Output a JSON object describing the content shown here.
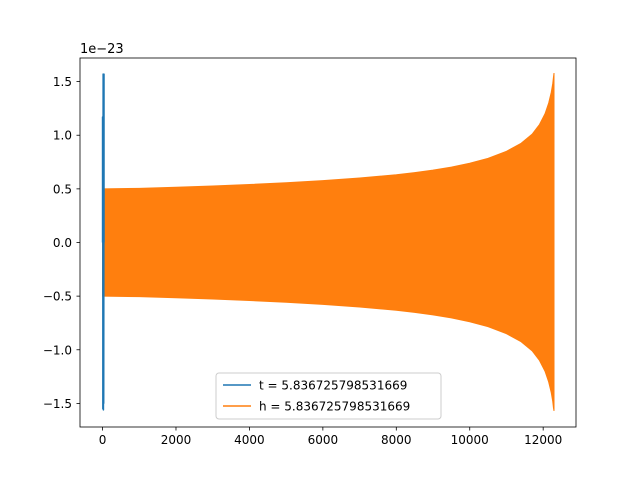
{
  "chart_data": {
    "type": "line",
    "offset_label": "1e−23",
    "scale_exponent": -23,
    "xlim": [
      -614,
      12894
    ],
    "ylim": [
      -1.72,
      1.72
    ],
    "x_ticks": [
      0,
      2000,
      4000,
      6000,
      8000,
      10000,
      12000
    ],
    "x_tick_labels": [
      "0",
      "2000",
      "4000",
      "6000",
      "8000",
      "10000",
      "12000"
    ],
    "y_ticks": [
      -1.5,
      -1.0,
      -0.5,
      0.0,
      0.5,
      1.0,
      1.5
    ],
    "y_tick_labels": [
      "−1.5",
      "−1.0",
      "−0.5",
      "0.0",
      "0.5",
      "1.0",
      "1.5"
    ],
    "legend_position": "lower-center",
    "series": [
      {
        "name": "t = 5.836725798531669",
        "color": "#1f77b4",
        "x": [
          0,
          0,
          8,
          8,
          16,
          16,
          24,
          24,
          32,
          32,
          40,
          40
        ],
        "y": [
          0,
          1.17,
          0.45,
          -1.55,
          1.57,
          -0.5,
          1.5,
          -1.56,
          1.55,
          -1.5,
          1.57,
          0
        ]
      },
      {
        "name": "h = 5.836725798531669",
        "color": "#ff7f0e",
        "envelope": {
          "x": [
            0,
            1000,
            2000,
            3000,
            4000,
            5000,
            6000,
            7000,
            8000,
            8500,
            9000,
            9500,
            10000,
            10500,
            11000,
            11400,
            11700,
            11900,
            12050,
            12150,
            12220,
            12260,
            12280,
            12295
          ],
          "upper": [
            0.5,
            0.505,
            0.515,
            0.527,
            0.541,
            0.557,
            0.577,
            0.601,
            0.632,
            0.652,
            0.675,
            0.703,
            0.739,
            0.785,
            0.85,
            0.925,
            1.01,
            1.1,
            1.2,
            1.3,
            1.4,
            1.48,
            1.54,
            1.58
          ],
          "lower": [
            -0.5,
            -0.505,
            -0.515,
            -0.527,
            -0.541,
            -0.557,
            -0.577,
            -0.601,
            -0.632,
            -0.652,
            -0.675,
            -0.703,
            -0.739,
            -0.785,
            -0.85,
            -0.925,
            -1.01,
            -1.1,
            -1.2,
            -1.3,
            -1.4,
            -1.48,
            -1.54,
            -1.57
          ]
        }
      }
    ]
  }
}
